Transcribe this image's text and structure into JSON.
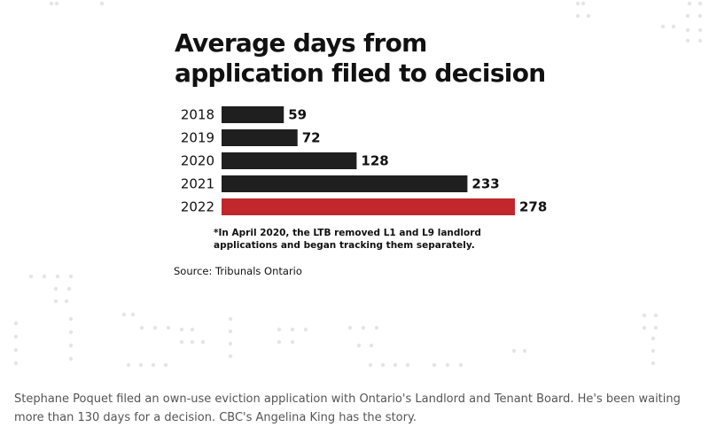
{
  "chart_data": {
    "type": "bar",
    "orientation": "horizontal",
    "title": "Average days from application filed to decision",
    "categories": [
      "2018",
      "2019",
      "2020",
      "2021",
      "2022"
    ],
    "values": [
      59,
      72,
      128,
      233,
      278
    ],
    "data_labels": [
      "59",
      "72",
      "128",
      "233",
      "278"
    ],
    "xlim": [
      0,
      278
    ],
    "grid": false,
    "bar_colors": [
      "#1f1f1f",
      "#1f1f1f",
      "#1f1f1f",
      "#1f1f1f",
      "#c1272d"
    ],
    "note": "*In April 2020, the LTB removed L1 and L9 landlord applications and began tracking them separately.",
    "source": "Source: Tribunals Ontario"
  },
  "caption": "Stephane Poquet filed an own-use eviction application with Ontario's Landlord and Tenant Board. He's been waiting more than 130 days for a decision. CBC's Angelina King has the story.",
  "colors": {
    "text": "#111111",
    "bar": "#1f1f1f",
    "highlight": "#c1272d",
    "caption": "#555555",
    "dots": "#e5e5e5"
  }
}
